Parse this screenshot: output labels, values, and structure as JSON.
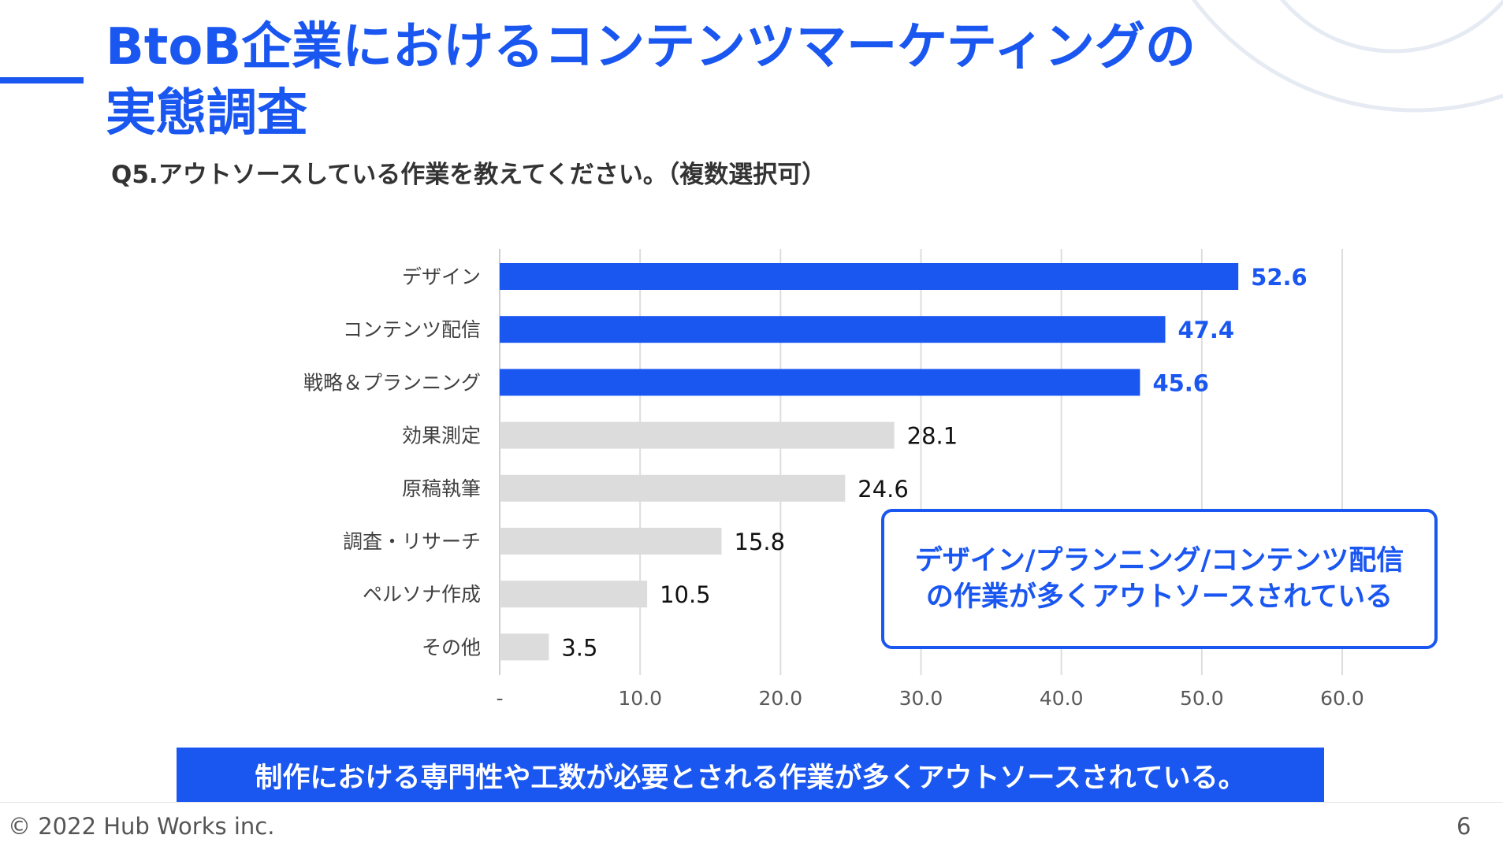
{
  "slide": {
    "title_lines": [
      "BtoB企業におけるコンテンツマーケティングの",
      "実態調査"
    ],
    "question": "Q5.アウトソースしている作業を教えてください。（複数選択可）",
    "callout_lines": [
      "デザイン/プランニング/コンテンツ配信",
      "の作業が多くアウトソースされている"
    ],
    "banner": "制作における専門性や工数が必要とされる作業が多くアウトソースされている。",
    "copyright": "© 2022 Hub Works inc.",
    "page_number": "6"
  },
  "colors": {
    "accent": "#1a56f0",
    "highlight_bar": "#1a56f0",
    "other_bar": "#dcdcdc",
    "grid": "#dddddd",
    "deco_circle": "#e6ebf3"
  },
  "chart_data": {
    "type": "bar",
    "orientation": "horizontal",
    "categories": [
      "デザイン",
      "コンテンツ配信",
      "戦略＆プランニング",
      "効果測定",
      "原稿執筆",
      "調査・リサーチ",
      "ペルソナ作成",
      "その他"
    ],
    "values": [
      52.6,
      47.4,
      45.6,
      28.1,
      24.6,
      15.8,
      10.5,
      3.5
    ],
    "value_labels": [
      "52.6",
      "47.4",
      "45.6",
      "28.1",
      "24.6",
      "15.8",
      "10.5",
      "3.5"
    ],
    "highlighted": [
      true,
      true,
      true,
      false,
      false,
      false,
      false,
      false
    ],
    "xlim": [
      0,
      60
    ],
    "xticks": [
      0,
      10,
      20,
      30,
      40,
      50,
      60
    ],
    "xtick_labels": [
      "-",
      "10.0",
      "20.0",
      "30.0",
      "40.0",
      "50.0",
      "60.0"
    ],
    "grid": true,
    "legend": false
  }
}
